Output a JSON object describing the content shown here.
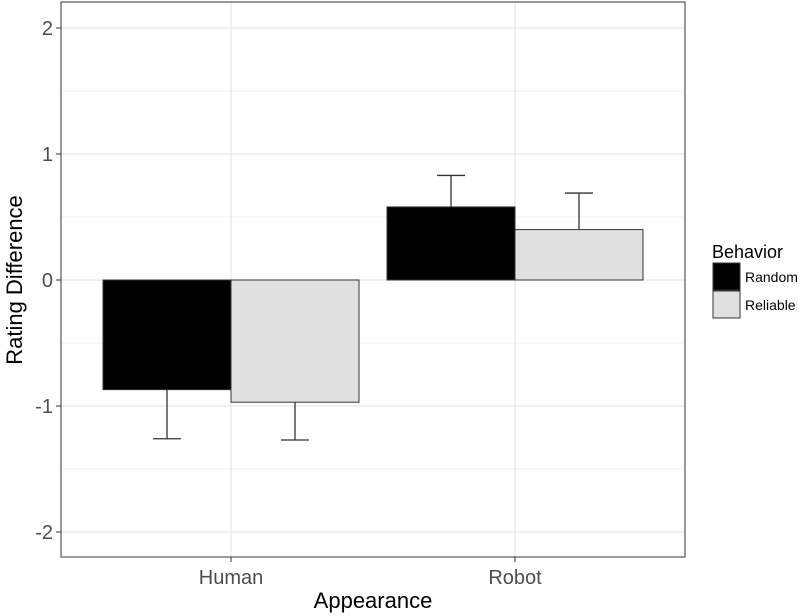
{
  "chart_data": {
    "type": "bar",
    "title": "",
    "xlabel": "Appearance",
    "ylabel": "Rating Difference",
    "categories": [
      "Human",
      "Robot"
    ],
    "series": [
      {
        "name": "Random",
        "color": "#000000",
        "values": [
          -0.87,
          0.58
        ],
        "error_upper_or_lower": [
          -1.26,
          0.83
        ]
      },
      {
        "name": "Reliable",
        "color": "#e0e0e0",
        "values": [
          -0.97,
          0.4
        ],
        "error_upper_or_lower": [
          -1.27,
          0.69
        ]
      }
    ],
    "ylim": [
      -2.2,
      2.2
    ],
    "yticks": [
      -2,
      -1,
      0,
      1,
      2
    ],
    "ytick_labels": [
      "-2",
      "-1",
      "0",
      "1",
      "2"
    ],
    "grid": true,
    "legend": {
      "title": "Behavior",
      "position": "right",
      "entries": [
        "Random",
        "Reliable"
      ]
    }
  }
}
